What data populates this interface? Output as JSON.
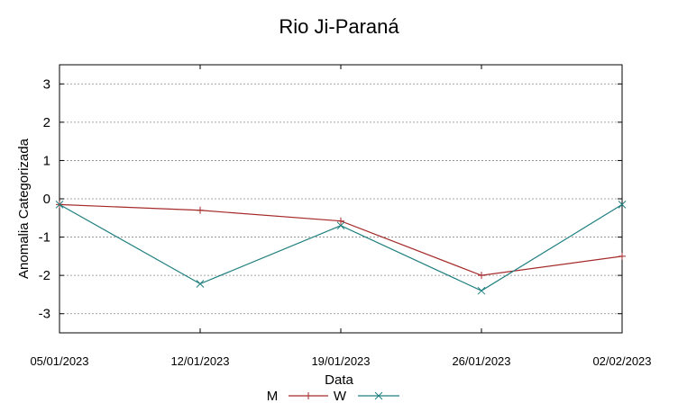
{
  "chart_data": {
    "type": "line",
    "title": "Rio Ji-Paraná",
    "xlabel": "Data",
    "ylabel": "Anomalia Categorizada",
    "categories": [
      "05/01/2023",
      "12/01/2023",
      "19/01/2023",
      "26/01/2023",
      "02/02/2023"
    ],
    "ylim": [
      -3.5,
      3.5
    ],
    "yticks": [
      3,
      2,
      1,
      0,
      -1,
      -2,
      -3
    ],
    "ytick_labels": [
      "3",
      "2",
      "1",
      "0",
      "-1",
      "-2",
      "-3"
    ],
    "grid": true,
    "legend_position": "bottom-center",
    "series": [
      {
        "name": "M",
        "values": [
          -0.15,
          -0.3,
          -0.58,
          -2.0,
          -1.5
        ],
        "color": "#a52a2a",
        "marker": "plus"
      },
      {
        "name": "W",
        "values": [
          -0.15,
          -2.22,
          -0.7,
          -2.4,
          -0.15
        ],
        "color": "#1f7f7f",
        "marker": "cross"
      }
    ]
  }
}
